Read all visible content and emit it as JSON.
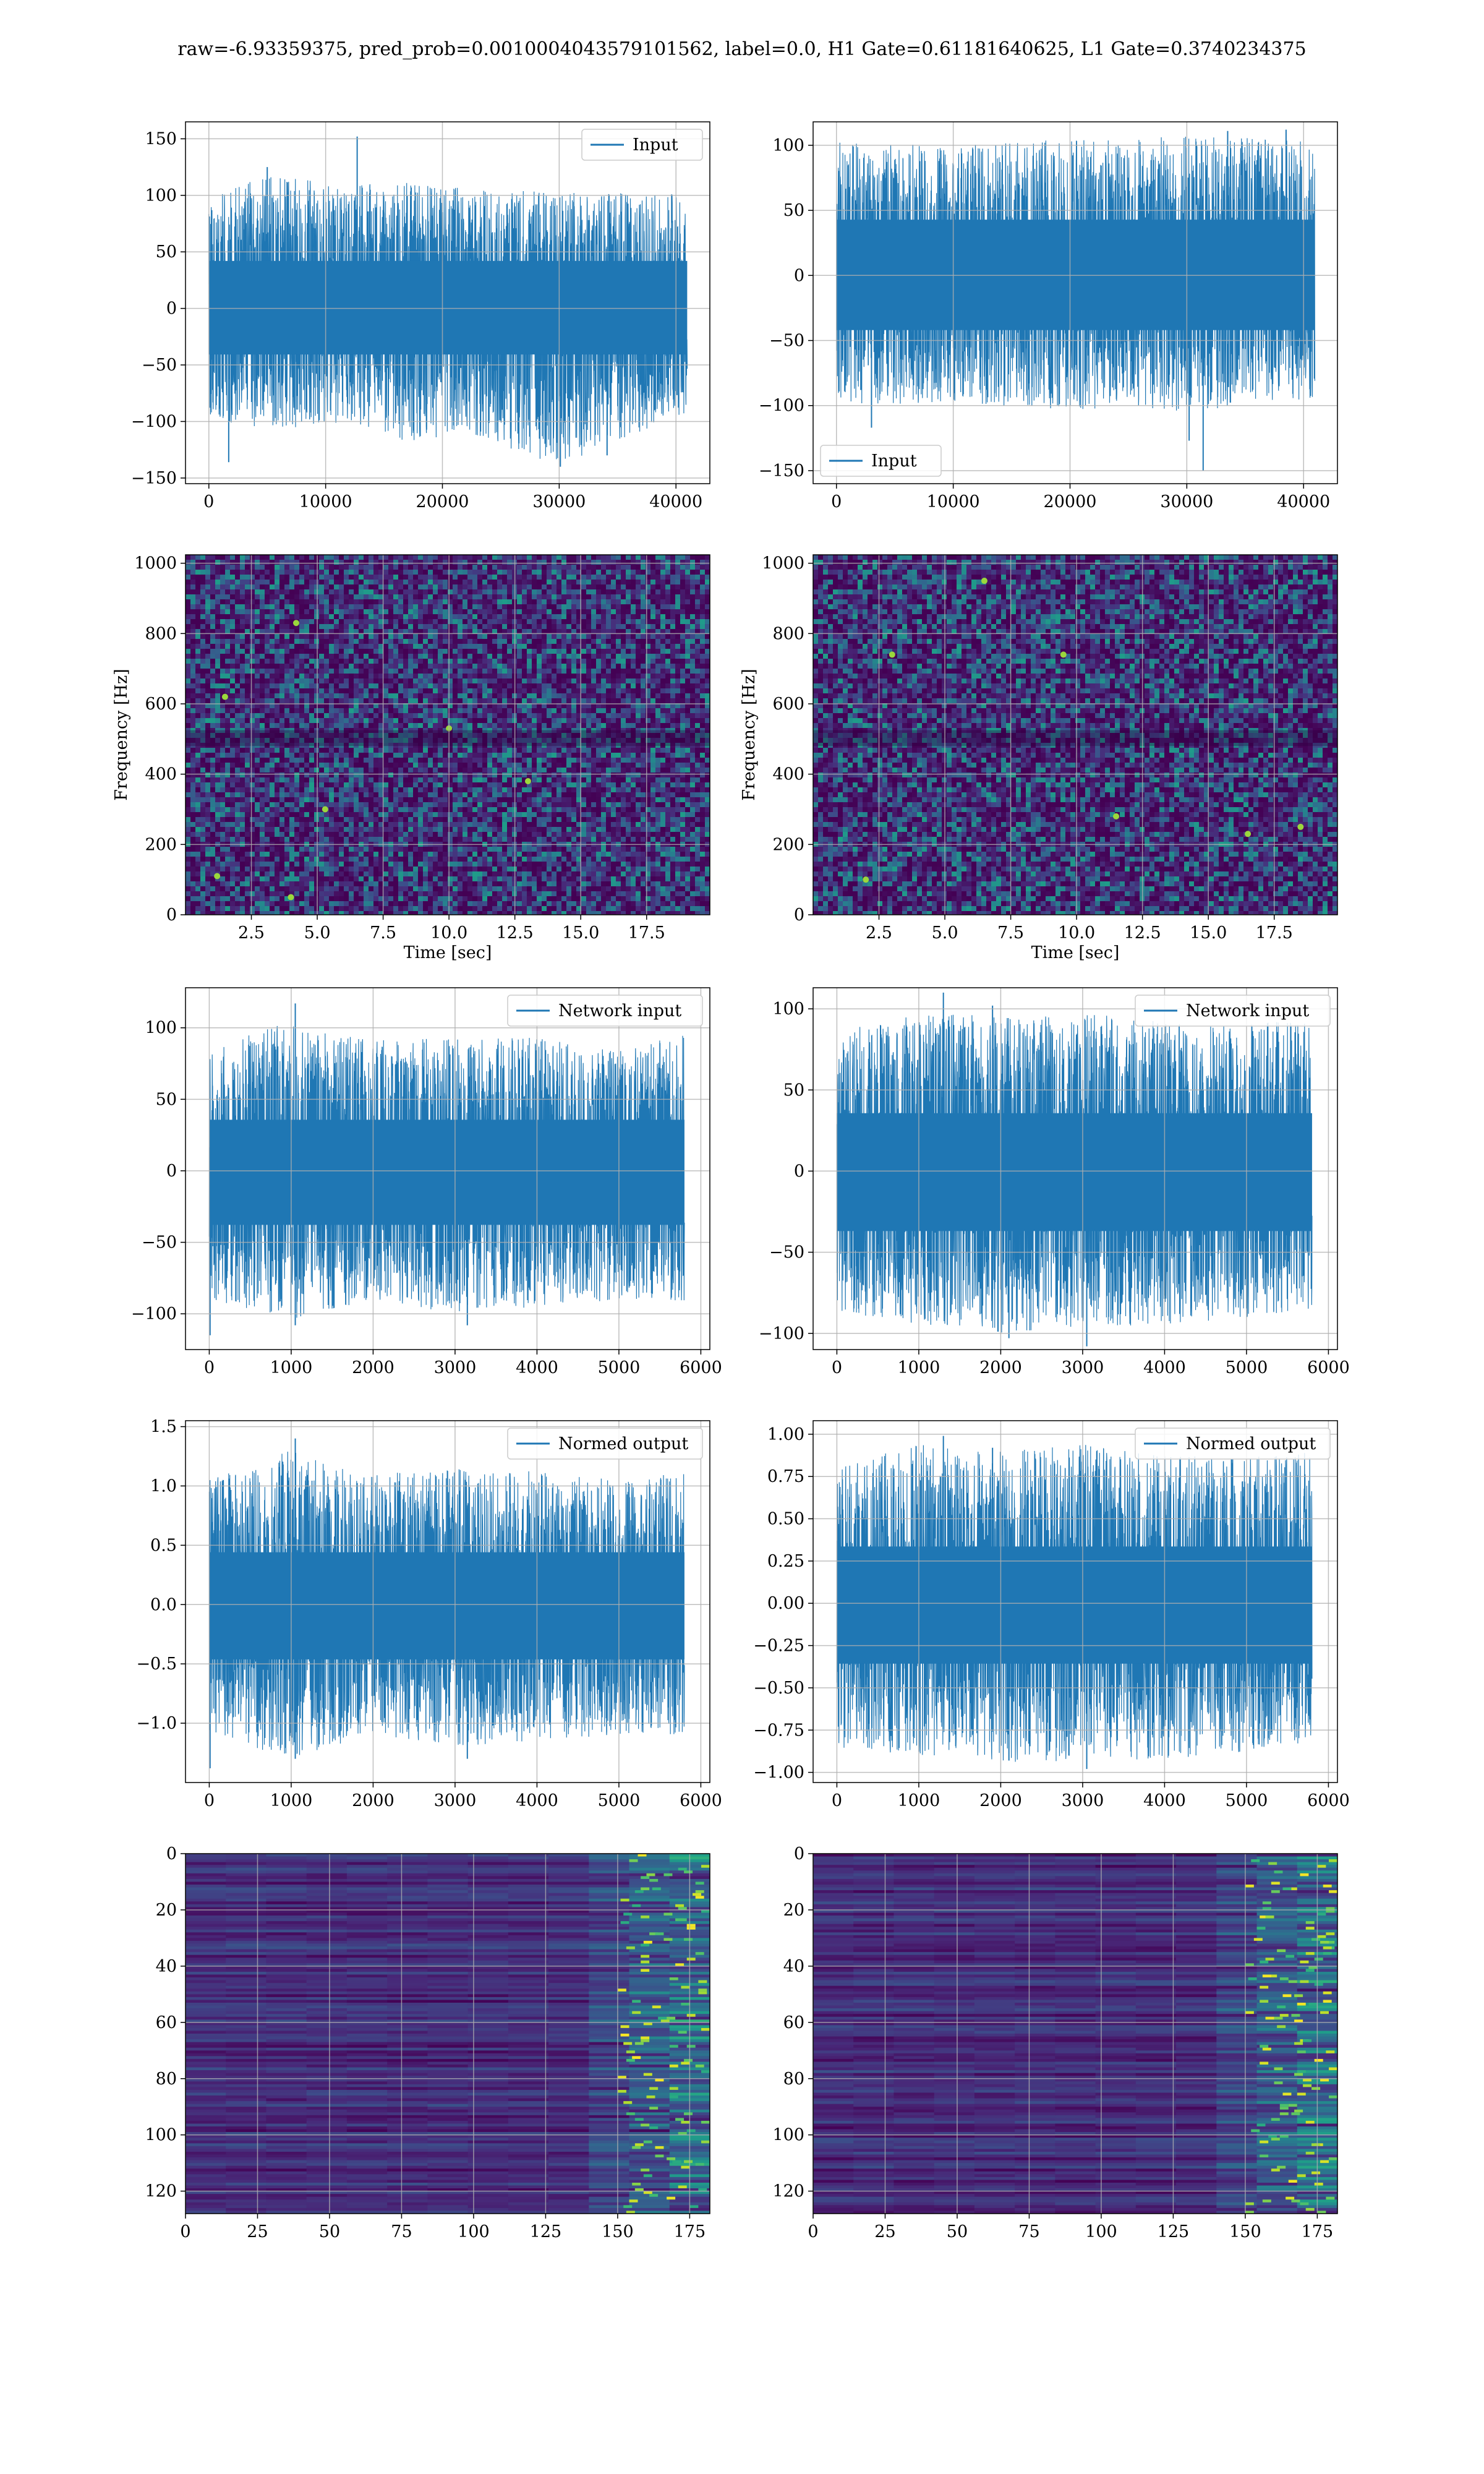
{
  "figure_title": "raw=-6.93359375, pred_prob=0.0010004043579101562, label=0.0, H1 Gate=0.61181640625, L1 Gate=0.3740234375",
  "colors": {
    "line": "#1f77b4",
    "grid": "#b0b0b0",
    "viridis_low": "#440154",
    "viridis_high": "#fde725"
  },
  "chart_data": [
    {
      "id": "input-left",
      "type": "line",
      "legend": "Input",
      "legend_loc": "upper right",
      "xlim": [
        -2000,
        42900
      ],
      "ylim": [
        -155,
        165
      ],
      "xticks": [
        0,
        10000,
        20000,
        30000,
        40000
      ],
      "yticks": [
        -150,
        -100,
        -50,
        0,
        50,
        100,
        150
      ],
      "xticklabels": [
        "0",
        "10000",
        "20000",
        "30000",
        "40000"
      ],
      "yticklabels": [
        "−150",
        "−100",
        "−50",
        "0",
        "50",
        "100",
        "150"
      ],
      "xrange": [
        0,
        40960
      ],
      "env": [
        [
          0,
          -97,
          100
        ],
        [
          5000,
          -108,
          118
        ],
        [
          12000,
          -100,
          110
        ],
        [
          17000,
          -118,
          112
        ],
        [
          22000,
          -110,
          107
        ],
        [
          30000,
          -139,
          102
        ],
        [
          40960,
          -92,
          103
        ]
      ],
      "peaks": [
        [
          12700,
          152
        ],
        [
          30100,
          -140
        ],
        [
          1700,
          -136
        ],
        [
          5000,
          125
        ],
        [
          34100,
          -130
        ]
      ]
    },
    {
      "id": "input-right",
      "type": "line",
      "legend": "Input",
      "legend_loc": "lower left",
      "xlim": [
        -2000,
        42900
      ],
      "ylim": [
        -160,
        118
      ],
      "xticks": [
        0,
        10000,
        20000,
        30000,
        40000
      ],
      "yticks": [
        -150,
        -100,
        -50,
        0,
        50,
        100
      ],
      "xticklabels": [
        "0",
        "10000",
        "20000",
        "30000",
        "40000"
      ],
      "yticklabels": [
        "−150",
        "−100",
        "−50",
        "0",
        "50",
        "100"
      ],
      "xrange": [
        0,
        40960
      ],
      "env": [
        [
          0,
          -100,
          102
        ],
        [
          10000,
          -98,
          100
        ],
        [
          20000,
          -103,
          105
        ],
        [
          30000,
          -105,
          107
        ],
        [
          40960,
          -94,
          104
        ]
      ],
      "peaks": [
        [
          31400,
          -150
        ],
        [
          30200,
          -127
        ],
        [
          3000,
          -117
        ],
        [
          33500,
          111
        ],
        [
          38500,
          112
        ]
      ]
    },
    {
      "id": "spec-left",
      "type": "heatmap",
      "xlabel": "Time [sec]",
      "ylabel": "Frequency [Hz]",
      "xlim": [
        0,
        19.9
      ],
      "ylim": [
        0,
        1024
      ],
      "xticks": [
        2.5,
        5.0,
        7.5,
        10.0,
        12.5,
        15.0,
        17.5
      ],
      "yticks": [
        0,
        200,
        400,
        600,
        800,
        1000
      ],
      "xticklabels": [
        "2.5",
        "5.0",
        "7.5",
        "10.0",
        "12.5",
        "15.0",
        "17.5"
      ],
      "yticklabels": [
        "0",
        "200",
        "400",
        "600",
        "800",
        "1000"
      ],
      "hot": [
        [
          4.2,
          830
        ],
        [
          1.5,
          620
        ],
        [
          5.3,
          300
        ],
        [
          13.0,
          380
        ],
        [
          4.0,
          50
        ],
        [
          1.2,
          110
        ],
        [
          10.0,
          530
        ]
      ]
    },
    {
      "id": "spec-right",
      "type": "heatmap",
      "xlabel": "Time [sec]",
      "ylabel": "Frequency [Hz]",
      "xlim": [
        0,
        19.9
      ],
      "ylim": [
        0,
        1024
      ],
      "xticks": [
        2.5,
        5.0,
        7.5,
        10.0,
        12.5,
        15.0,
        17.5
      ],
      "yticks": [
        0,
        200,
        400,
        600,
        800,
        1000
      ],
      "xticklabels": [
        "2.5",
        "5.0",
        "7.5",
        "10.0",
        "12.5",
        "15.0",
        "17.5"
      ],
      "yticklabels": [
        "0",
        "200",
        "400",
        "600",
        "800",
        "1000"
      ],
      "hot": [
        [
          6.5,
          950
        ],
        [
          16.5,
          230
        ],
        [
          11.5,
          280
        ],
        [
          3.0,
          740
        ],
        [
          9.5,
          740
        ],
        [
          18.5,
          250
        ],
        [
          2.0,
          100
        ]
      ]
    },
    {
      "id": "netinput-left",
      "type": "line",
      "legend": "Network input",
      "legend_loc": "upper right",
      "xlim": [
        -290,
        6110
      ],
      "ylim": [
        -125,
        128
      ],
      "xticks": [
        0,
        1000,
        2000,
        3000,
        4000,
        5000,
        6000
      ],
      "yticks": [
        -100,
        -50,
        0,
        50,
        100
      ],
      "xticklabels": [
        "0",
        "1000",
        "2000",
        "3000",
        "4000",
        "5000",
        "6000"
      ],
      "yticklabels": [
        "−100",
        "−50",
        "0",
        "50",
        "100"
      ],
      "xrange": [
        0,
        5800
      ],
      "env": [
        [
          0,
          -90,
          85
        ],
        [
          1000,
          -105,
          105
        ],
        [
          2000,
          -90,
          92
        ],
        [
          3000,
          -100,
          93
        ],
        [
          4000,
          -95,
          93
        ],
        [
          5000,
          -90,
          85
        ],
        [
          5800,
          -92,
          95
        ]
      ],
      "peaks": [
        [
          1050,
          117
        ],
        [
          10,
          -115
        ],
        [
          3150,
          -108
        ],
        [
          1050,
          -108
        ]
      ]
    },
    {
      "id": "netinput-right",
      "type": "line",
      "legend": "Network input",
      "legend_loc": "upper right",
      "xlim": [
        -290,
        6110
      ],
      "ylim": [
        -110,
        113
      ],
      "xticks": [
        0,
        1000,
        2000,
        3000,
        4000,
        5000,
        6000
      ],
      "yticks": [
        -100,
        -50,
        0,
        50,
        100
      ],
      "xticklabels": [
        "0",
        "1000",
        "2000",
        "3000",
        "4000",
        "5000",
        "6000"
      ],
      "yticklabels": [
        "−100",
        "−50",
        "0",
        "50",
        "100"
      ],
      "xrange": [
        0,
        5800
      ],
      "env": [
        [
          0,
          -88,
          85
        ],
        [
          1000,
          -95,
          100
        ],
        [
          2000,
          -100,
          95
        ],
        [
          3000,
          -96,
          98
        ],
        [
          4000,
          -95,
          92
        ],
        [
          5000,
          -90,
          90
        ],
        [
          5800,
          -85,
          95
        ]
      ],
      "peaks": [
        [
          1300,
          110
        ],
        [
          2100,
          -103
        ],
        [
          3050,
          -108
        ],
        [
          1900,
          102
        ]
      ]
    },
    {
      "id": "normed-left",
      "type": "line",
      "legend": "Normed output",
      "legend_loc": "upper right",
      "xlim": [
        -290,
        6110
      ],
      "ylim": [
        -1.5,
        1.55
      ],
      "xticks": [
        0,
        1000,
        2000,
        3000,
        4000,
        5000,
        6000
      ],
      "yticks": [
        -1.0,
        -0.5,
        0.0,
        0.5,
        1.0,
        1.5
      ],
      "xticklabels": [
        "0",
        "1000",
        "2000",
        "3000",
        "4000",
        "5000",
        "6000"
      ],
      "yticklabels": [
        "−1.0",
        "−0.5",
        "0.0",
        "0.5",
        "1.0",
        "1.5"
      ],
      "xrange": [
        0,
        5800
      ],
      "env": [
        [
          0,
          -1.1,
          1.05
        ],
        [
          1000,
          -1.3,
          1.3
        ],
        [
          2000,
          -1.1,
          1.1
        ],
        [
          3000,
          -1.2,
          1.15
        ],
        [
          4000,
          -1.15,
          1.12
        ],
        [
          5000,
          -1.1,
          1.05
        ],
        [
          5800,
          -1.1,
          1.12
        ]
      ],
      "peaks": [
        [
          1050,
          1.4
        ],
        [
          10,
          -1.38
        ],
        [
          3150,
          -1.3
        ],
        [
          1050,
          -1.3
        ]
      ]
    },
    {
      "id": "normed-right",
      "type": "line",
      "legend": "Normed output",
      "legend_loc": "upper right",
      "xlim": [
        -290,
        6110
      ],
      "ylim": [
        -1.06,
        1.08
      ],
      "xticks": [
        0,
        1000,
        2000,
        3000,
        4000,
        5000,
        6000
      ],
      "yticks": [
        -1.0,
        -0.75,
        -0.5,
        -0.25,
        0.0,
        0.25,
        0.5,
        0.75,
        1.0
      ],
      "xticklabels": [
        "0",
        "1000",
        "2000",
        "3000",
        "4000",
        "5000",
        "6000"
      ],
      "yticklabels": [
        "−1.00",
        "−0.75",
        "−0.50",
        "−0.25",
        "0.00",
        "0.25",
        "0.50",
        "0.75",
        "1.00"
      ],
      "xrange": [
        0,
        5800
      ],
      "env": [
        [
          0,
          -0.85,
          0.8
        ],
        [
          1000,
          -0.9,
          0.95
        ],
        [
          2000,
          -0.95,
          0.9
        ],
        [
          3000,
          -0.93,
          0.94
        ],
        [
          4000,
          -0.92,
          0.88
        ],
        [
          5000,
          -0.88,
          0.86
        ],
        [
          5800,
          -0.82,
          0.9
        ]
      ],
      "peaks": [
        [
          1300,
          0.99
        ],
        [
          2100,
          -0.93
        ],
        [
          3050,
          -0.98
        ],
        [
          1900,
          0.92
        ]
      ]
    },
    {
      "id": "features-left",
      "type": "heatmap",
      "xlim": [
        0,
        182
      ],
      "ylim": [
        128,
        0
      ],
      "xticks": [
        0,
        25,
        50,
        75,
        100,
        125,
        150,
        175
      ],
      "yticks": [
        0,
        20,
        40,
        60,
        80,
        100,
        120
      ],
      "xticklabels": [
        "0",
        "25",
        "50",
        "75",
        "100",
        "125",
        "150",
        "175"
      ],
      "yticklabels": [
        "0",
        "20",
        "40",
        "60",
        "80",
        "100",
        "120"
      ]
    },
    {
      "id": "features-right",
      "type": "heatmap",
      "xlim": [
        0,
        182
      ],
      "ylim": [
        128,
        0
      ],
      "xticks": [
        0,
        25,
        50,
        75,
        100,
        125,
        150,
        175
      ],
      "yticks": [
        0,
        20,
        40,
        60,
        80,
        100,
        120
      ],
      "xticklabels": [
        "0",
        "25",
        "50",
        "75",
        "100",
        "125",
        "150",
        "175"
      ],
      "yticklabels": [
        "0",
        "20",
        "40",
        "60",
        "80",
        "100",
        "120"
      ]
    }
  ]
}
